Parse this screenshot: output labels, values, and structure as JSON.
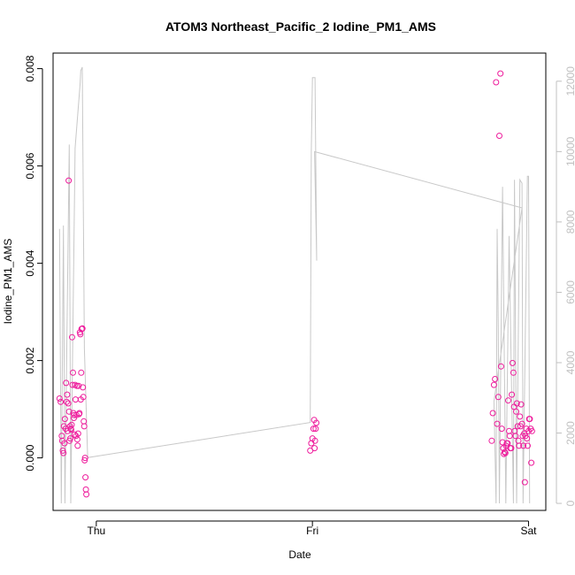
{
  "chart_data": {
    "type": "scatter",
    "title": "ATOM3 Northeast_Pacific_2 Iodine_PM1_AMS",
    "xlabel": "Date",
    "ylabel": "Iodine_PM1_AMS",
    "x_ticks": [
      "Thu",
      "Fri",
      "Sat"
    ],
    "x_range_days": [
      -0.2,
      2.08
    ],
    "ylim": [
      -0.00108,
      0.00832
    ],
    "y_ticks": [
      "0.000",
      "0.002",
      "0.004",
      "0.006",
      "0.008"
    ],
    "y_tick_values": [
      0,
      0.002,
      0.004,
      0.006,
      0.008
    ],
    "y2lim": [
      -200,
      12800
    ],
    "y2_ticks": [
      "0",
      "2000",
      "4000",
      "6000",
      "8000",
      "10000",
      "12000"
    ],
    "y2_tick_values": [
      0,
      2000,
      4000,
      6000,
      8000,
      10000,
      12000
    ],
    "grid": false,
    "colors": {
      "points": "#ee1c9c",
      "secondary_line": "#c8c8c8",
      "axis": "#000000",
      "right_axis": "#c0c0c0"
    },
    "series": [
      {
        "marker": "circle",
        "points": [
          [
            -0.17,
            0.00122
          ],
          [
            -0.165,
            0.00115
          ],
          [
            -0.16,
            0.00045
          ],
          [
            -0.158,
            0.00035
          ],
          [
            -0.155,
            0.00015
          ],
          [
            -0.152,
            0.0001
          ],
          [
            -0.15,
            0.00065
          ],
          [
            -0.147,
            0.0003
          ],
          [
            -0.145,
            0.0008
          ],
          [
            -0.142,
            0.0006
          ],
          [
            -0.14,
            0.00154
          ],
          [
            -0.137,
            0.00115
          ],
          [
            -0.135,
            0.0013
          ],
          [
            -0.133,
            0.00055
          ],
          [
            -0.13,
            0.00112
          ],
          [
            -0.128,
            0.0057
          ],
          [
            -0.126,
            0.00095
          ],
          [
            -0.124,
            0.00035
          ],
          [
            -0.122,
            0.00065
          ],
          [
            -0.12,
            0.0004
          ],
          [
            -0.118,
            0.0006
          ],
          [
            -0.116,
            0.00058
          ],
          [
            -0.114,
            0.00068
          ],
          [
            -0.112,
            0.00248
          ],
          [
            -0.11,
            0.0015
          ],
          [
            -0.108,
            0.00175
          ],
          [
            -0.106,
            0.00092
          ],
          [
            -0.104,
            0.00082
          ],
          [
            -0.102,
            0.00088
          ],
          [
            -0.1,
            0.00048
          ],
          [
            -0.098,
            0.0015
          ],
          [
            -0.096,
            0.0012
          ],
          [
            -0.094,
            0.00045
          ],
          [
            -0.092,
            0.00088
          ],
          [
            -0.09,
            0.00148
          ],
          [
            -0.088,
            0.00038
          ],
          [
            -0.086,
            0.00025
          ],
          [
            -0.084,
            0.0005
          ],
          [
            -0.082,
            0.00148
          ],
          [
            -0.08,
            0.0009
          ],
          [
            -0.078,
            0.00092
          ],
          [
            -0.076,
            0.00258
          ],
          [
            -0.074,
            0.00254
          ],
          [
            -0.072,
            0.0012
          ],
          [
            -0.07,
            0.00175
          ],
          [
            -0.068,
            0.00265
          ],
          [
            -0.066,
            0.00265
          ],
          [
            -0.064,
            0.00266
          ],
          [
            -0.062,
            0.00145
          ],
          [
            -0.06,
            0.00125
          ],
          [
            -0.058,
            0.00075
          ],
          [
            -0.056,
            0.00065
          ],
          [
            -0.054,
            -5e-05
          ],
          [
            -0.052,
            0.0
          ],
          [
            -0.05,
            -0.0004
          ],
          [
            -0.048,
            -0.00065
          ],
          [
            -0.046,
            -0.00075
          ],
          [
            0.99,
            0.00015
          ],
          [
            0.995,
            0.0003
          ],
          [
            1.0,
            0.0004
          ],
          [
            1.005,
            0.0006
          ],
          [
            1.008,
            0.00078
          ],
          [
            1.01,
            0.0002
          ],
          [
            1.012,
            0.00035
          ],
          [
            1.015,
            0.0006
          ],
          [
            1.018,
            0.00072
          ],
          [
            1.83,
            0.00035
          ],
          [
            1.835,
            0.00092
          ],
          [
            1.84,
            0.0015
          ],
          [
            1.845,
            0.00162
          ],
          [
            1.85,
            0.00772
          ],
          [
            1.855,
            0.0007
          ],
          [
            1.86,
            0.00125
          ],
          [
            1.865,
            0.00662
          ],
          [
            1.87,
            0.0079
          ],
          [
            1.873,
            0.00188
          ],
          [
            1.876,
            0.0006
          ],
          [
            1.88,
            0.00032
          ],
          [
            1.883,
            0.0002
          ],
          [
            1.886,
            8e-05
          ],
          [
            1.89,
            0.00012
          ],
          [
            1.893,
            0.0001
          ],
          [
            1.896,
            0.00025
          ],
          [
            1.9,
            0.0003
          ],
          [
            1.903,
            0.0003
          ],
          [
            1.906,
            0.00118
          ],
          [
            1.91,
            0.00055
          ],
          [
            1.913,
            0.00045
          ],
          [
            1.916,
            0.0002
          ],
          [
            1.92,
            0.0002
          ],
          [
            1.923,
            0.0013
          ],
          [
            1.926,
            0.00195
          ],
          [
            1.93,
            0.00175
          ],
          [
            1.933,
            0.00105
          ],
          [
            1.936,
            0.00055
          ],
          [
            1.94,
            0.00045
          ],
          [
            1.943,
            0.00095
          ],
          [
            1.946,
            0.00112
          ],
          [
            1.95,
            0.00065
          ],
          [
            1.953,
            0.00035
          ],
          [
            1.956,
            0.00025
          ],
          [
            1.96,
            0.00085
          ],
          [
            1.963,
            0.00065
          ],
          [
            1.966,
            0.0011
          ],
          [
            1.97,
            0.0007
          ],
          [
            1.973,
            0.00045
          ],
          [
            1.976,
            0.00025
          ],
          [
            1.98,
            0.0005
          ],
          [
            1.983,
            -0.0005
          ],
          [
            1.986,
            0.00045
          ],
          [
            1.99,
            0.0006
          ],
          [
            1.993,
            0.0004
          ],
          [
            1.996,
            0.00025
          ],
          [
            2.0,
            0.00055
          ],
          [
            2.003,
            0.0008
          ],
          [
            2.006,
            0.0008
          ],
          [
            2.01,
            0.0006
          ],
          [
            2.013,
            -0.0001
          ],
          [
            2.016,
            0.00055
          ]
        ]
      },
      {
        "line": true,
        "axis": "right",
        "points": [
          [
            -0.17,
            7800
          ],
          [
            -0.162,
            0
          ],
          [
            -0.152,
            7900
          ],
          [
            -0.145,
            0
          ],
          [
            -0.125,
            10200
          ],
          [
            -0.118,
            0
          ],
          [
            -0.098,
            10100
          ],
          [
            -0.075,
            11900
          ],
          [
            -0.072,
            12300
          ],
          [
            -0.065,
            12400
          ],
          [
            -0.055,
            4400
          ],
          [
            -0.04,
            1300
          ],
          [
            0.99,
            2300
          ],
          [
            0.995,
            10000
          ],
          [
            1.0,
            12100
          ],
          [
            1.012,
            12100
          ],
          [
            1.02,
            6900
          ],
          [
            1.01,
            10000
          ],
          [
            1.97,
            8400
          ],
          [
            1.84,
            2900
          ],
          [
            1.85,
            0
          ],
          [
            1.855,
            7800
          ],
          [
            1.86,
            5000
          ],
          [
            1.865,
            0
          ],
          [
            1.88,
            9000
          ],
          [
            1.895,
            0
          ],
          [
            1.91,
            7600
          ],
          [
            1.93,
            0
          ],
          [
            1.935,
            9200
          ],
          [
            1.945,
            0
          ],
          [
            1.96,
            9200
          ],
          [
            1.97,
            9100
          ],
          [
            1.975,
            0
          ],
          [
            1.995,
            9300
          ],
          [
            2.0,
            9300
          ],
          [
            2.005,
            0
          ]
        ]
      }
    ]
  }
}
